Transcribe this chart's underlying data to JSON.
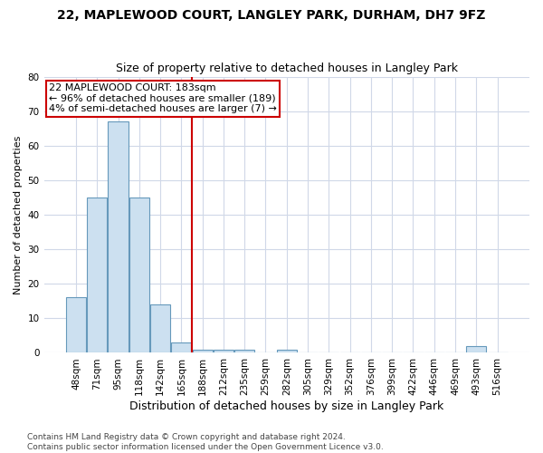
{
  "title1": "22, MAPLEWOOD COURT, LANGLEY PARK, DURHAM, DH7 9FZ",
  "title2": "Size of property relative to detached houses in Langley Park",
  "xlabel": "Distribution of detached houses by size in Langley Park",
  "ylabel": "Number of detached properties",
  "footnote": "Contains HM Land Registry data © Crown copyright and database right 2024.\nContains public sector information licensed under the Open Government Licence v3.0.",
  "bin_labels": [
    "48sqm",
    "71sqm",
    "95sqm",
    "118sqm",
    "142sqm",
    "165sqm",
    "188sqm",
    "212sqm",
    "235sqm",
    "259sqm",
    "282sqm",
    "305sqm",
    "329sqm",
    "352sqm",
    "376sqm",
    "399sqm",
    "422sqm",
    "446sqm",
    "469sqm",
    "493sqm",
    "516sqm"
  ],
  "bar_values": [
    16,
    45,
    67,
    45,
    14,
    3,
    1,
    1,
    1,
    0,
    1,
    0,
    0,
    0,
    0,
    0,
    0,
    0,
    0,
    2,
    0
  ],
  "bar_color": "#cce0f0",
  "bar_edge_color": "#6699bb",
  "vline_pos": 6.5,
  "vline_color": "#cc0000",
  "annotation_text": "22 MAPLEWOOD COURT: 183sqm\n← 96% of detached houses are smaller (189)\n4% of semi-detached houses are larger (7) →",
  "annotation_box_color": "#cc0000",
  "ylim": [
    0,
    80
  ],
  "yticks": [
    0,
    10,
    20,
    30,
    40,
    50,
    60,
    70,
    80
  ],
  "background_color": "#ffffff",
  "grid_color": "#d0d8e8",
  "title1_fontsize": 10,
  "title2_fontsize": 9,
  "xlabel_fontsize": 9,
  "ylabel_fontsize": 8,
  "tick_fontsize": 7.5,
  "annotation_fontsize": 8,
  "footnote_fontsize": 6.5
}
